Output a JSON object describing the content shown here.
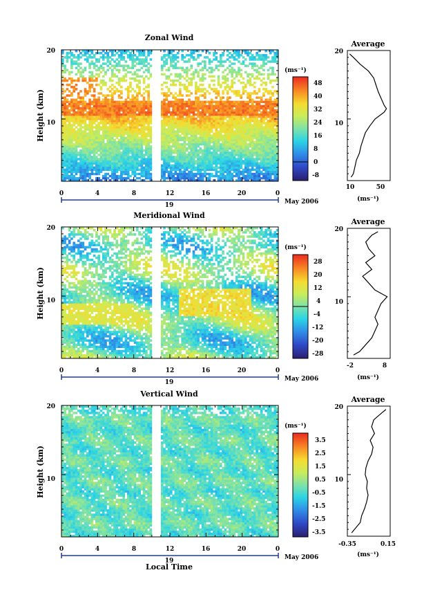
{
  "chart_data": [
    {
      "type": "heatmap",
      "title": "Zonal Wind",
      "ylabel": "Height (km)",
      "yticks": [
        "20",
        "10"
      ],
      "ylim": [
        1,
        20
      ],
      "xticks": [
        "0",
        "4",
        "8",
        "12",
        "16",
        "20",
        "0"
      ],
      "xlim": [
        0,
        24
      ],
      "date_tick": "19",
      "date_label": "May 2006",
      "colorbar_unit": "(ms⁻¹)",
      "colorbar_ticks": [
        "48",
        "40",
        "32",
        "24",
        "16",
        "8",
        "0",
        "-8"
      ],
      "colorbar_range": [
        -12,
        52
      ],
      "gap_hours": [
        10,
        11
      ],
      "jet_height_km": 10.5,
      "peak_value": 52,
      "average_panel": {
        "title": "Average",
        "xticks": [
          "10",
          "50"
        ],
        "yticks": [
          "20",
          "10"
        ],
        "xlabel": "(ms⁻¹)",
        "xlim": [
          5,
          62
        ],
        "profile_height_km": [
          1.5,
          2,
          3,
          4,
          5,
          6,
          7,
          8,
          9,
          10,
          10.5,
          11,
          11.5,
          12,
          13,
          14,
          15,
          16,
          17,
          18,
          19,
          19.5
        ],
        "profile_value": [
          10,
          13,
          15,
          17,
          21,
          23,
          26,
          29,
          35,
          42,
          48,
          54,
          57,
          54,
          50,
          46,
          43,
          40,
          33,
          22,
          13,
          8
        ]
      }
    },
    {
      "type": "heatmap",
      "title": "Meridional Wind",
      "ylabel": "Height (km)",
      "yticks": [
        "20",
        "10"
      ],
      "ylim": [
        1,
        20
      ],
      "xticks": [
        "0",
        "4",
        "8",
        "12",
        "16",
        "20",
        "0"
      ],
      "xlim": [
        0,
        24
      ],
      "date_tick": "19",
      "date_label": "May 2006",
      "colorbar_unit": "(ms⁻¹)",
      "colorbar_ticks": [
        "28",
        "20",
        "12",
        "4",
        "-4",
        "-12",
        "-20",
        "-28"
      ],
      "colorbar_range": [
        -32,
        32
      ],
      "gap_hours": [
        10,
        11
      ],
      "average_panel": {
        "title": "Average",
        "xticks": [
          "-2",
          "8"
        ],
        "yticks": [
          "20",
          "10"
        ],
        "xlabel": "(ms⁻¹)",
        "xlim": [
          -4,
          10
        ],
        "profile_height_km": [
          1.5,
          2,
          3,
          4,
          5,
          6,
          7,
          8,
          9,
          10,
          11,
          12,
          13,
          14,
          15,
          16,
          17,
          18,
          19,
          19.5
        ],
        "profile_value": [
          -2,
          0,
          2,
          4,
          5,
          6,
          5,
          6,
          7,
          9,
          5,
          3,
          1,
          4,
          2,
          5,
          3,
          2,
          4,
          6
        ]
      }
    },
    {
      "type": "heatmap",
      "title": "Vertical Wind",
      "ylabel": "Height (km)",
      "yticks": [
        "20",
        "10"
      ],
      "ylim": [
        1,
        20
      ],
      "xticks": [
        "0",
        "4",
        "8",
        "12",
        "16",
        "20",
        "0"
      ],
      "xlim": [
        0,
        24
      ],
      "xlabel": "Local Time",
      "date_tick": "19",
      "date_label": "May 2006",
      "colorbar_unit": "(ms⁻¹)",
      "colorbar_ticks": [
        "3.5",
        "2.5",
        "1.5",
        "0.5",
        "-0.5",
        "-1.5",
        "-2.5",
        "-3.5"
      ],
      "colorbar_range": [
        -4,
        4
      ],
      "gap_hours": [
        10,
        11
      ],
      "average_panel": {
        "title": "Average",
        "xticks": [
          "-0.35",
          "0.15"
        ],
        "yticks": [
          "20",
          "10"
        ],
        "xlabel": "(ms⁻¹)",
        "xlim": [
          -0.4,
          0.2
        ],
        "profile_height_km": [
          1.5,
          2,
          3,
          4,
          5,
          6,
          7,
          8,
          9,
          10,
          11,
          12,
          13,
          14,
          15,
          16,
          17,
          18,
          19,
          19.5
        ],
        "profile_value": [
          -0.34,
          -0.3,
          -0.22,
          -0.2,
          -0.16,
          -0.13,
          -0.11,
          -0.13,
          -0.12,
          -0.15,
          -0.14,
          -0.11,
          -0.06,
          -0.04,
          -0.08,
          -0.02,
          -0.06,
          -0.03,
          0.08,
          0.14
        ]
      }
    }
  ]
}
